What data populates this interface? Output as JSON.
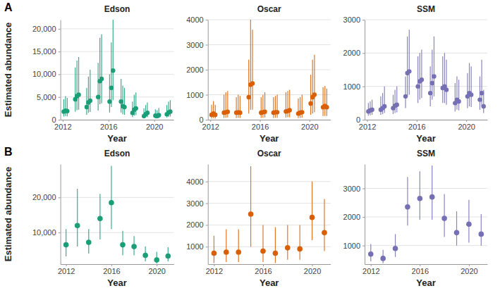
{
  "panel_labels": [
    "A",
    "B"
  ],
  "chart_data": [
    {
      "type": "scatter",
      "title": "Edson",
      "y_label": "Estimated abundance",
      "x_label": "Year",
      "color": "#1b9e77",
      "marker": "circle",
      "grid": true,
      "x": [
        2012.1,
        2012.25,
        2012.4,
        2013.1,
        2013.25,
        2013.4,
        2014.1,
        2014.25,
        2014.4,
        2015.1,
        2015.25,
        2015.4,
        2016.1,
        2016.25,
        2016.4,
        2017.1,
        2017.25,
        2017.4,
        2018.1,
        2018.25,
        2018.4,
        2019.1,
        2019.25,
        2019.4,
        2020.1,
        2020.25,
        2020.4,
        2021.1,
        2021.25,
        2021.4
      ],
      "values": [
        1800,
        2000,
        1900,
        4500,
        5200,
        5500,
        2800,
        3800,
        4200,
        5000,
        8500,
        9000,
        4000,
        7000,
        10800,
        4000,
        3000,
        2800,
        1500,
        2200,
        2500,
        800,
        1200,
        1500,
        900,
        800,
        1000,
        1200,
        1600,
        1800
      ],
      "lower": [
        700,
        800,
        750,
        1800,
        2100,
        2200,
        1100,
        1500,
        1700,
        2000,
        3400,
        3600,
        1600,
        2800,
        4300,
        1600,
        1200,
        1100,
        600,
        900,
        1000,
        300,
        500,
        600,
        350,
        300,
        400,
        500,
        650,
        700
      ],
      "upper": [
        4500,
        5200,
        4800,
        11500,
        13000,
        13800,
        7000,
        9500,
        11000,
        12500,
        18000,
        18800,
        10000,
        17000,
        22500,
        9000,
        7500,
        7000,
        4000,
        5500,
        6000,
        2500,
        3200,
        3800,
        2300,
        2100,
        2600,
        3200,
        4000,
        4300
      ],
      "xlim": [
        2011.8,
        2021.7
      ],
      "xticks": [
        2012,
        2016,
        2020
      ],
      "ylim": [
        0,
        22000
      ],
      "yticks": [
        0,
        {
          "value": 5000,
          "label": "5,000"
        },
        {
          "value": 10000,
          "label": "10,000"
        },
        {
          "value": 15000,
          "label": "15,000"
        },
        {
          "value": 20000,
          "label": "20,000"
        }
      ]
    },
    {
      "type": "scatter",
      "title": "Oscar",
      "x_label": "Year",
      "color": "#d95f02",
      "marker": "circle",
      "grid": true,
      "x": [
        2012.1,
        2012.25,
        2012.4,
        2013.1,
        2013.25,
        2013.4,
        2014.1,
        2014.25,
        2014.4,
        2015.1,
        2015.25,
        2015.4,
        2016.1,
        2016.25,
        2016.4,
        2017.1,
        2017.25,
        2017.4,
        2018.1,
        2018.25,
        2018.4,
        2019.1,
        2019.25,
        2019.4,
        2020.1,
        2020.25,
        2020.4,
        2021.1,
        2021.25,
        2021.4
      ],
      "values": [
        200,
        250,
        200,
        280,
        300,
        320,
        280,
        300,
        280,
        900,
        1400,
        1450,
        280,
        300,
        320,
        280,
        300,
        300,
        330,
        350,
        380,
        250,
        280,
        300,
        650,
        900,
        1000,
        500,
        550,
        500
      ],
      "lower": [
        50,
        60,
        50,
        70,
        80,
        90,
        70,
        80,
        70,
        250,
        400,
        400,
        70,
        80,
        90,
        70,
        80,
        80,
        90,
        100,
        100,
        60,
        70,
        80,
        200,
        250,
        300,
        150,
        150,
        150
      ],
      "upper": [
        600,
        750,
        600,
        1000,
        1100,
        1150,
        900,
        1000,
        950,
        2400,
        4000,
        3600,
        900,
        1000,
        1100,
        900,
        950,
        1000,
        1100,
        1150,
        1200,
        850,
        900,
        1000,
        1800,
        2400,
        2600,
        1300,
        1350,
        1250
      ],
      "xlim": [
        2011.8,
        2021.7
      ],
      "xticks": [
        2012,
        2016,
        2020
      ],
      "ylim": [
        0,
        4000
      ],
      "yticks": [
        0,
        1000,
        2000,
        3000,
        4000
      ]
    },
    {
      "type": "scatter",
      "title": "SSM",
      "x_label": "Year",
      "color": "#7570b3",
      "marker": "circle",
      "grid": true,
      "x": [
        2012.1,
        2012.25,
        2012.4,
        2013.1,
        2013.25,
        2013.4,
        2014.1,
        2014.25,
        2014.4,
        2015.1,
        2015.25,
        2015.4,
        2016.1,
        2016.25,
        2016.4,
        2017.1,
        2017.25,
        2017.4,
        2018.1,
        2018.25,
        2018.4,
        2019.1,
        2019.25,
        2019.4,
        2020.1,
        2020.25,
        2020.4,
        2021.1,
        2021.25,
        2021.4
      ],
      "values": [
        250,
        280,
        300,
        300,
        350,
        400,
        350,
        420,
        450,
        700,
        1400,
        1450,
        1000,
        1150,
        1200,
        800,
        1100,
        1300,
        950,
        1000,
        900,
        500,
        600,
        550,
        700,
        800,
        750,
        600,
        800,
        400
      ],
      "lower": [
        120,
        130,
        150,
        150,
        170,
        200,
        170,
        200,
        220,
        350,
        700,
        750,
        500,
        600,
        650,
        400,
        600,
        700,
        500,
        500,
        450,
        250,
        300,
        280,
        350,
        400,
        380,
        300,
        400,
        200
      ],
      "upper": [
        500,
        550,
        600,
        700,
        800,
        1000,
        750,
        900,
        1000,
        1300,
        2500,
        2700,
        1900,
        2000,
        2100,
        1600,
        2100,
        2500,
        1900,
        2000,
        1800,
        1100,
        1300,
        1200,
        1400,
        1700,
        1600,
        1300,
        1800,
        900
      ],
      "xlim": [
        2011.8,
        2021.7
      ],
      "xticks": [
        2012,
        2016,
        2020
      ],
      "ylim": [
        0,
        3000
      ],
      "yticks": [
        0,
        1000,
        2000,
        3000
      ]
    },
    {
      "type": "scatter",
      "title": "Edson",
      "y_label": "Estimated abundance",
      "x_label": "Year",
      "color": "#1b9e77",
      "marker": "circle",
      "grid": true,
      "x": [
        2012,
        2013,
        2014,
        2015,
        2016,
        2017,
        2018,
        2019,
        2020,
        2021
      ],
      "values": [
        6500,
        12000,
        7200,
        14000,
        18500,
        6500,
        6000,
        3500,
        2200,
        3300
      ],
      "lower": [
        3200,
        6000,
        4000,
        8000,
        11000,
        3500,
        3500,
        1800,
        1200,
        1800
      ],
      "upper": [
        11000,
        22500,
        11000,
        21000,
        29000,
        10500,
        9000,
        6000,
        4500,
        5800
      ],
      "xlim": [
        2011.5,
        2021.5
      ],
      "xticks": [
        2012,
        2016,
        2020
      ],
      "ylim": [
        1000,
        29500
      ],
      "yticks": [
        {
          "value": 10000,
          "label": "10,000"
        },
        {
          "value": 20000,
          "label": "20,000"
        }
      ]
    },
    {
      "type": "scatter",
      "title": "Oscar",
      "x_label": "Year",
      "color": "#d95f02",
      "marker": "circle",
      "grid": true,
      "x": [
        2012,
        2013,
        2014,
        2015,
        2016,
        2017,
        2018,
        2019,
        2020,
        2021
      ],
      "values": [
        700,
        750,
        750,
        2500,
        800,
        700,
        950,
        900,
        2350,
        1650
      ],
      "lower": [
        250,
        300,
        300,
        1000,
        300,
        250,
        400,
        400,
        1300,
        800
      ],
      "upper": [
        1500,
        1800,
        1800,
        4700,
        2000,
        1900,
        2000,
        2000,
        4000,
        3200
      ],
      "xlim": [
        2011.5,
        2021.5
      ],
      "xticks": [
        2012,
        2016,
        2020
      ],
      "ylim": [
        200,
        4800
      ],
      "yticks": [
        1000,
        2000,
        3000,
        4000
      ]
    },
    {
      "type": "scatter",
      "title": "SSM",
      "x_label": "Year",
      "color": "#7570b3",
      "marker": "circle",
      "grid": true,
      "x": [
        2012,
        2013,
        2014,
        2015,
        2016,
        2017,
        2018,
        2019,
        2020,
        2021
      ],
      "values": [
        700,
        550,
        900,
        2350,
        2650,
        2700,
        1950,
        1450,
        1750,
        1400
      ],
      "lower": [
        450,
        380,
        600,
        1700,
        1900,
        1900,
        1300,
        1000,
        1100,
        1000
      ],
      "upper": [
        1050,
        850,
        1400,
        3400,
        3600,
        3800,
        2800,
        2200,
        2600,
        2100
      ],
      "xlim": [
        2011.5,
        2021.5
      ],
      "xticks": [
        2012,
        2016,
        2020
      ],
      "ylim": [
        350,
        3850
      ],
      "yticks": [
        1000,
        2000,
        3000
      ]
    }
  ]
}
